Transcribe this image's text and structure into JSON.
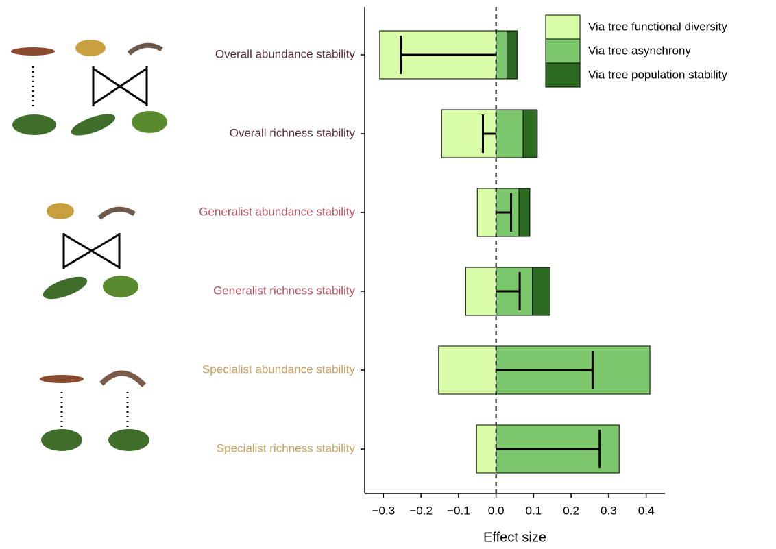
{
  "chart_data": {
    "type": "diverging-bar",
    "x_label": "Effect size",
    "categories": [
      "Overall abundance stability",
      "Overall richness stability",
      "Generalist abundance stability",
      "Generalist richness stability",
      "Specialist abundance stability",
      "Specialist richness stability"
    ],
    "label_colors": [
      "#5a2a3a",
      "#5a2a3a",
      "#b5505c",
      "#b5505c",
      "#c9a05e",
      "#c9a05e"
    ],
    "series": [
      {
        "name": "Via tree functional diversity",
        "color": "#d9fca8",
        "values": [
          -0.31,
          -0.145,
          -0.05,
          -0.081,
          -0.153,
          -0.052
        ]
      },
      {
        "name": "Via tree asynchrony",
        "color": "#7dc76d",
        "values": [
          0.029,
          0.072,
          0.061,
          0.097,
          0.41,
          0.328
        ]
      },
      {
        "name": "Via tree population stability",
        "color": "#2c6a1f",
        "values": [
          0.027,
          0.038,
          0.029,
          0.047,
          0,
          0
        ]
      }
    ],
    "total_effect": [
      -0.254,
      -0.035,
      0.04,
      0.063,
      0.257,
      0.276
    ],
    "xlim": [
      -0.35,
      0.45
    ],
    "xticks": [
      {
        "value": -0.3,
        "label": "−0.3"
      },
      {
        "value": -0.2,
        "label": "−0.2"
      },
      {
        "value": -0.1,
        "label": "−0.1"
      },
      {
        "value": 0,
        "label": "0.0"
      },
      0.1,
      0.2,
      0.3,
      0.4
    ],
    "legend": "top-right"
  }
}
